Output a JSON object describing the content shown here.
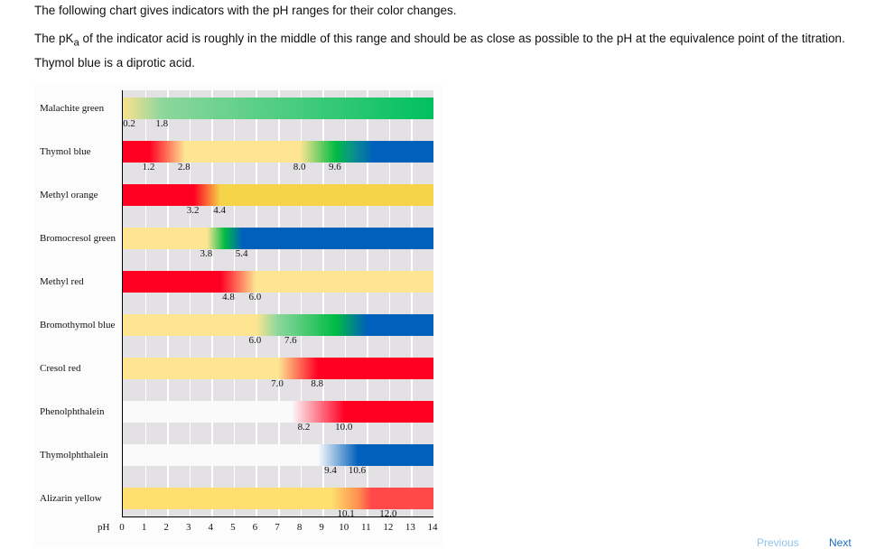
{
  "intro": "The following chart gives indicators with the pH ranges for their color changes.",
  "pka": {
    "before": "The pK",
    "sub": "a",
    "after": " of the indicator acid is roughly in the middle of this range and should be as close as possible to the pH at the equivalence point of the titration.",
    "line2": "Thymol blue is a diprotic acid."
  },
  "chart_data": {
    "type": "range-bar",
    "xlabel": "pH",
    "xlim": [
      0,
      14
    ],
    "xticks": [
      "0",
      "1",
      "2",
      "3",
      "4",
      "5",
      "6",
      "7",
      "8",
      "9",
      "10",
      "11",
      "12",
      "13",
      "14"
    ],
    "grid": true,
    "indicators": [
      {
        "name": "Malachite green",
        "stops": [
          [
            0,
            "#f3e08f"
          ],
          [
            0.2,
            "#f0e090"
          ],
          [
            1.8,
            "#8cd79c"
          ],
          [
            14,
            "#00c060"
          ]
        ],
        "labels": [
          [
            0.2,
            "0.2"
          ],
          [
            1.8,
            "1.8"
          ]
        ]
      },
      {
        "name": "Thymol blue",
        "stops": [
          [
            0,
            "#ff0022"
          ],
          [
            1.2,
            "#ff0022"
          ],
          [
            2.8,
            "#fde592"
          ],
          [
            8.0,
            "#fde592"
          ],
          [
            9.6,
            "#00bb44"
          ],
          [
            10.2,
            "#0a9a80"
          ],
          [
            11.3,
            "#0060bb"
          ],
          [
            14,
            "#0060bb"
          ]
        ],
        "labels": [
          [
            1.2,
            "1.2"
          ],
          [
            2.8,
            "2.8"
          ],
          [
            8.0,
            "8.0"
          ],
          [
            9.6,
            "9.6"
          ]
        ]
      },
      {
        "name": "Methyl orange",
        "stops": [
          [
            0,
            "#ff0022"
          ],
          [
            3.2,
            "#ff0022"
          ],
          [
            4.4,
            "#f6d44a"
          ],
          [
            14,
            "#f6d44a"
          ]
        ],
        "labels": [
          [
            3.2,
            "3.2"
          ],
          [
            4.4,
            "4.4"
          ]
        ]
      },
      {
        "name": "Bromocresol green",
        "stops": [
          [
            0,
            "#fde592"
          ],
          [
            3.8,
            "#fde592"
          ],
          [
            4.6,
            "#00bb44"
          ],
          [
            5.4,
            "#0060bb"
          ],
          [
            14,
            "#0060bb"
          ]
        ],
        "labels": [
          [
            3.8,
            "3.8"
          ],
          [
            5.4,
            "5.4"
          ]
        ]
      },
      {
        "name": "Methyl red",
        "stops": [
          [
            0,
            "#ff0022"
          ],
          [
            4.4,
            "#ff0022"
          ],
          [
            6.0,
            "#fde592"
          ],
          [
            14,
            "#fde592"
          ]
        ],
        "labels": [
          [
            4.8,
            "4.8"
          ],
          [
            6.0,
            "6.0"
          ]
        ]
      },
      {
        "name": "Bromothymol blue",
        "stops": [
          [
            0,
            "#fde592"
          ],
          [
            6.0,
            "#fde592"
          ],
          [
            7.0,
            "#8cd79c"
          ],
          [
            9.6,
            "#00bb44"
          ],
          [
            11.0,
            "#0060bb"
          ],
          [
            14,
            "#0060bb"
          ]
        ],
        "labels": [
          [
            6.0,
            "6.0"
          ],
          [
            7.6,
            "7.6"
          ]
        ]
      },
      {
        "name": "Cresol red",
        "stops": [
          [
            0,
            "#fde592"
          ],
          [
            7.0,
            "#fde592"
          ],
          [
            8.8,
            "#ff0022"
          ],
          [
            14,
            "#ff0022"
          ]
        ],
        "labels": [
          [
            7.0,
            "7.0"
          ],
          [
            8.8,
            "8.8"
          ]
        ]
      },
      {
        "name": "Phenolphthalein",
        "stops": [
          [
            0,
            "#fafafa"
          ],
          [
            7.6,
            "#fafafa"
          ],
          [
            10.0,
            "#ff0022"
          ],
          [
            14,
            "#ff0022"
          ]
        ],
        "labels": [
          [
            8.2,
            "8.2"
          ],
          [
            10.0,
            "10.0"
          ]
        ]
      },
      {
        "name": "Thymolphthalein",
        "stops": [
          [
            0,
            "#fafafa"
          ],
          [
            8.8,
            "#fafafa"
          ],
          [
            10.6,
            "#0060bb"
          ],
          [
            14,
            "#0060bb"
          ]
        ],
        "labels": [
          [
            9.4,
            "9.4"
          ],
          [
            10.6,
            "10.6"
          ]
        ]
      },
      {
        "name": "Alizarin yellow",
        "stops": [
          [
            0,
            "#ffdf70"
          ],
          [
            9.4,
            "#ffdf70"
          ],
          [
            10.6,
            "#ff9050"
          ],
          [
            11.2,
            "#ff4848"
          ],
          [
            14,
            "#ff4848"
          ]
        ],
        "labels": [
          [
            10.1,
            "10.1"
          ],
          [
            12.0,
            "12.0"
          ]
        ]
      }
    ]
  },
  "nav": {
    "previous": "Previous",
    "next": "Next",
    "accent": "#1a7fd0"
  }
}
